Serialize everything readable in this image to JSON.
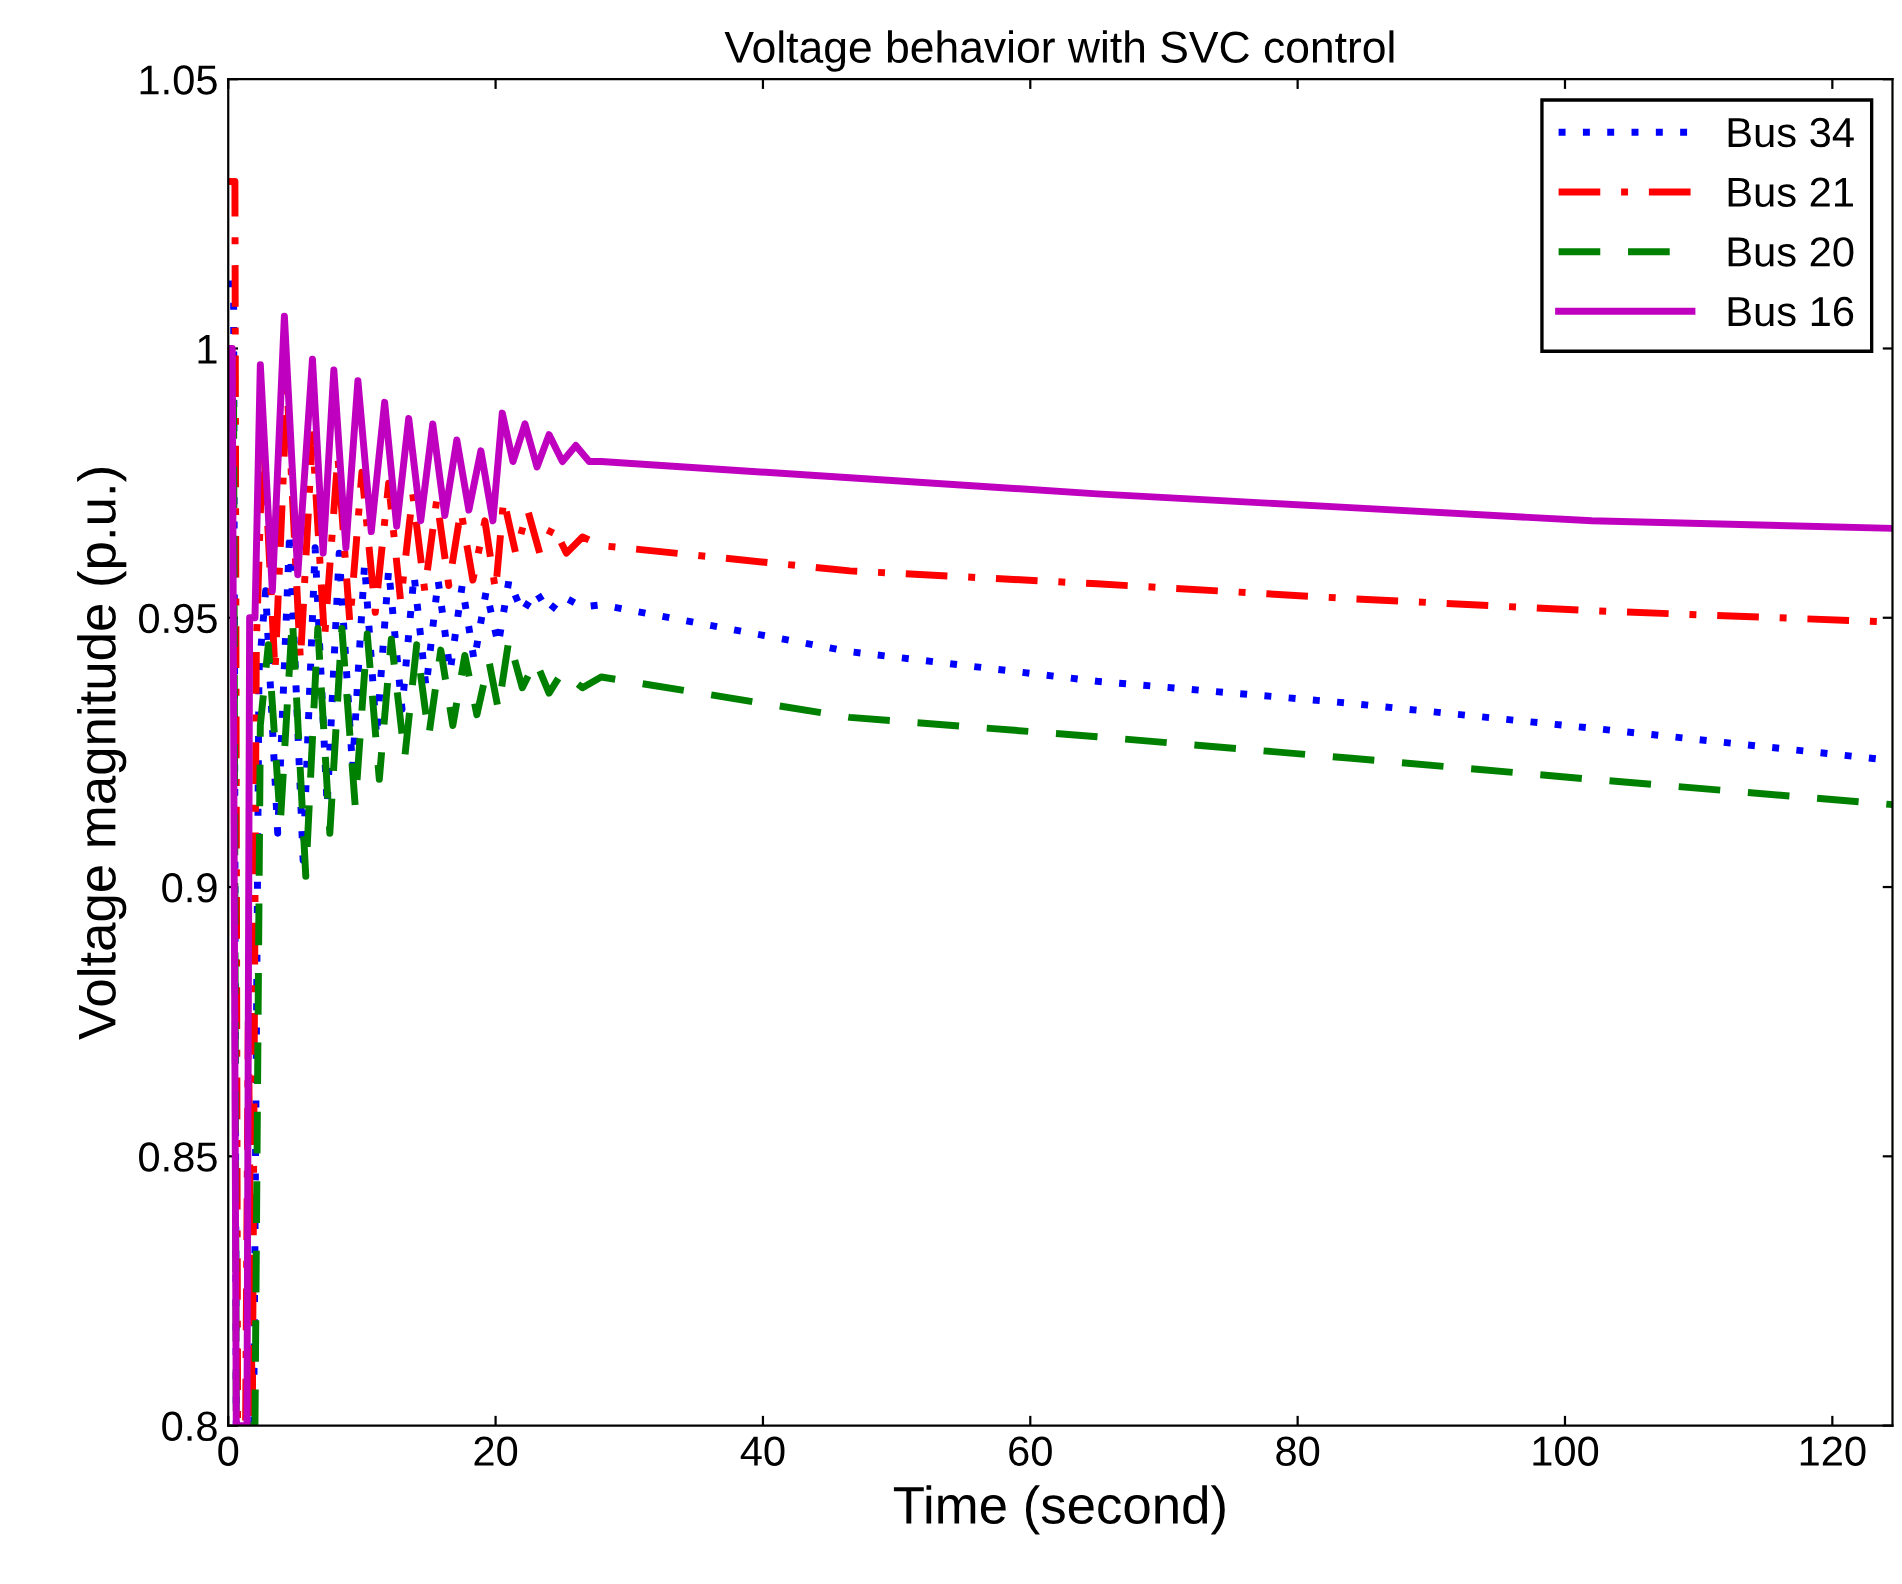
{
  "chart_data": {
    "type": "line",
    "title": "Voltage behavior with SVC control",
    "xlabel": "Time (second)",
    "ylabel": "Voltage magnitude (p.u.)",
    "xlim": [
      0,
      124.5
    ],
    "xticks": [
      0,
      20,
      40,
      60,
      80,
      100,
      120
    ],
    "ylim": [
      0.8,
      1.05
    ],
    "yticks": [
      0.8,
      0.85,
      0.9,
      0.95,
      1,
      1.05
    ],
    "grid": false,
    "legend": "top right",
    "series": [
      {
        "name": "Bus 34",
        "color": "#0000ff",
        "line_style": "dotted",
        "x": [
          0,
          0.4,
          0.6,
          1.9,
          2.3,
          2.8,
          3.7,
          4.6,
          5.6,
          6.5,
          7.4,
          8.3,
          9.3,
          10.2,
          11.1,
          12,
          13,
          13.9,
          14.8,
          15.7,
          16.6,
          17.5,
          18.4,
          19.3,
          20.2,
          21,
          22,
          23,
          24,
          25,
          26.5,
          27.9,
          46.5,
          65,
          83.6,
          102,
          124.5
        ],
        "values": [
          1.012,
          1.012,
          0.8,
          0.8,
          0.94,
          0.955,
          0.91,
          0.966,
          0.905,
          0.963,
          0.915,
          0.962,
          0.922,
          0.96,
          0.928,
          0.959,
          0.933,
          0.958,
          0.937,
          0.957,
          0.94,
          0.956,
          0.942,
          0.955,
          0.945,
          0.957,
          0.951,
          0.955,
          0.951,
          0.954,
          0.952,
          0.9524,
          0.9437,
          0.9382,
          0.9342,
          0.9295,
          0.9235
        ]
      },
      {
        "name": "Bus 21",
        "color": "#ff0000",
        "line_style": "dashdot",
        "x": [
          0,
          0.5,
          0.7,
          1.3,
          1.5,
          1.8,
          2.1,
          2.6,
          3.5,
          4.4,
          5.4,
          6.3,
          7.2,
          8.2,
          9.1,
          10,
          11,
          12,
          12.9,
          13.8,
          14.7,
          15.6,
          16.5,
          17.4,
          18.3,
          19.2,
          20,
          20.6,
          21.5,
          22.4,
          23.3,
          24.3,
          25.3,
          26.5,
          27.9,
          46.5,
          65,
          83.6,
          102,
          124.5
        ],
        "values": [
          1.031,
          1.031,
          0.8,
          0.8,
          0.875,
          0.8,
          0.945,
          0.985,
          0.94,
          0.993,
          0.942,
          0.984,
          0.946,
          0.98,
          0.949,
          0.977,
          0.951,
          0.975,
          0.953,
          0.973,
          0.955,
          0.972,
          0.956,
          0.97,
          0.957,
          0.968,
          0.955,
          0.972,
          0.962,
          0.97,
          0.962,
          0.967,
          0.962,
          0.965,
          0.9634,
          0.9587,
          0.9563,
          0.9536,
          0.9513,
          0.9492
        ]
      },
      {
        "name": "Bus 20",
        "color": "#008000",
        "line_style": "dashed",
        "x": [
          0,
          0.4,
          0.6,
          2.0,
          2.4,
          3,
          3.9,
          4.8,
          5.8,
          6.7,
          7.6,
          8.5,
          9.5,
          10.4,
          11.3,
          12.2,
          13.2,
          14.1,
          15,
          15.9,
          16.8,
          17.7,
          18.6,
          19.5,
          20.2,
          21,
          22,
          23,
          24,
          25,
          26.5,
          27.9,
          46.5,
          65,
          83.6,
          102,
          124.5
        ],
        "values": [
          0.99,
          0.99,
          0.8,
          0.8,
          0.93,
          0.945,
          0.912,
          0.95,
          0.902,
          0.948,
          0.91,
          0.948,
          0.915,
          0.947,
          0.92,
          0.946,
          0.924,
          0.945,
          0.928,
          0.944,
          0.93,
          0.943,
          0.932,
          0.942,
          0.933,
          0.946,
          0.937,
          0.942,
          0.936,
          0.94,
          0.937,
          0.939,
          0.9315,
          0.9279,
          0.924,
          0.92,
          0.9153
        ]
      },
      {
        "name": "Bus 16",
        "color": "#bf00bf",
        "line_style": "solid",
        "x": [
          0,
          0.3,
          0.6,
          1.4,
          1.6,
          2.0,
          2.4,
          3.3,
          4.2,
          5.2,
          6.3,
          7.1,
          7.9,
          8.8,
          9.7,
          10.7,
          11.7,
          12.6,
          13.5,
          14.4,
          15.3,
          16.2,
          17.1,
          18,
          18.9,
          19.8,
          20.5,
          21.3,
          22.2,
          23.1,
          24,
          25,
          26,
          27,
          27.9,
          46.5,
          65,
          83.6,
          102,
          124.5
        ],
        "values": [
          1.0,
          1.0,
          0.8,
          0.8,
          0.95,
          0.95,
          0.997,
          0.955,
          1.006,
          0.958,
          0.998,
          0.962,
          0.996,
          0.963,
          0.994,
          0.966,
          0.99,
          0.967,
          0.987,
          0.968,
          0.986,
          0.969,
          0.983,
          0.97,
          0.981,
          0.968,
          0.988,
          0.979,
          0.986,
          0.978,
          0.984,
          0.979,
          0.982,
          0.979,
          0.979,
          0.976,
          0.973,
          0.9705,
          0.968,
          0.9666
        ]
      }
    ]
  }
}
